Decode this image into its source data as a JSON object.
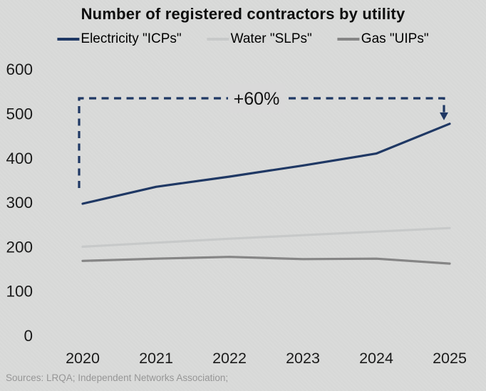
{
  "chart_data": {
    "type": "line",
    "title": "Number of registered contractors by utility",
    "categories": [
      "2020",
      "2021",
      "2022",
      "2023",
      "2024",
      "2025"
    ],
    "series": [
      {
        "name": "Electricity \"ICPs\"",
        "color": "#1F3864",
        "values": [
          297,
          335,
          358,
          383,
          410,
          477
        ]
      },
      {
        "name": "Water \"SLPs\"",
        "color": "#C7C9C9",
        "values": [
          200,
          209,
          218,
          226,
          234,
          242
        ]
      },
      {
        "name": "Gas \"UIPs\"",
        "color": "#858585",
        "values": [
          168,
          173,
          177,
          172,
          173,
          162
        ]
      }
    ],
    "yticks": [
      0,
      100,
      200,
      300,
      400,
      500,
      600
    ],
    "ylim": [
      0,
      600
    ],
    "grid": false,
    "legend_position": "top",
    "annotation": {
      "label": "+60%",
      "from_category": "2020",
      "to_category": "2025",
      "color": "#1F3864"
    },
    "source": "Sources: LRQA; Independent Networks Association;"
  },
  "colors": {
    "background": "#D9D9D9",
    "title_text": "#0D0D0D",
    "axis_text": "#1A1A1A",
    "source_text": "#969696",
    "annotation": "#1F3864"
  }
}
